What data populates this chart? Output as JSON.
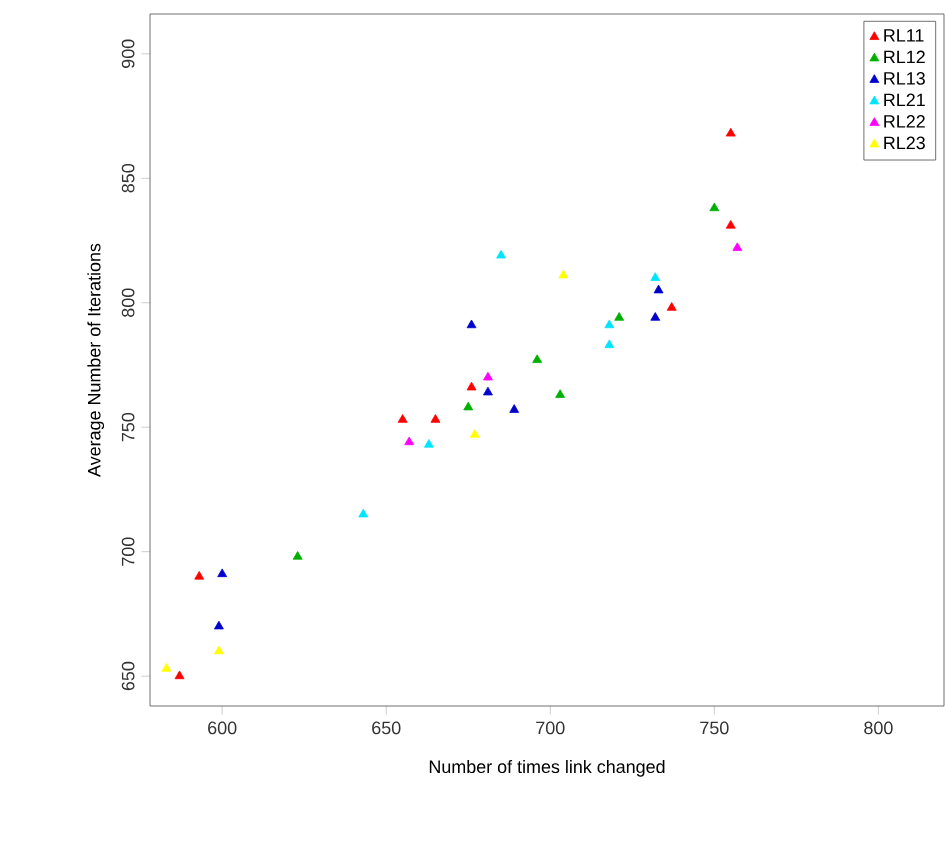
{
  "chart_data": {
    "type": "scatter",
    "xlabel": "Number of times link changed",
    "ylabel": "Average Number of Iterations",
    "xlim": [
      578,
      820
    ],
    "ylim": [
      638,
      916
    ],
    "xticks": [
      600,
      650,
      700,
      750,
      800
    ],
    "yticks": [
      650,
      700,
      750,
      800,
      850,
      900
    ],
    "marker": "triangle",
    "legend": "top right",
    "grid": false,
    "series": [
      {
        "name": "RL11",
        "color": "#ff0000",
        "x": [
          593,
          587,
          655,
          665,
          676,
          755,
          755,
          737
        ],
        "values": [
          690,
          650,
          753,
          753,
          766,
          868,
          831,
          798
        ]
      },
      {
        "name": "RL12",
        "color": "#00b000",
        "x": [
          696,
          675,
          703,
          721,
          750,
          623
        ],
        "values": [
          777,
          758,
          763,
          794,
          838,
          698
        ]
      },
      {
        "name": "RL13",
        "color": "#0000cd",
        "x": [
          676,
          681,
          689,
          733,
          732,
          600,
          599
        ],
        "values": [
          791,
          764,
          757,
          805,
          794,
          691,
          670
        ]
      },
      {
        "name": "RL21",
        "color": "#00e5ff",
        "x": [
          685,
          732,
          718,
          718,
          643,
          663
        ],
        "values": [
          819,
          810,
          791,
          783,
          715,
          743
        ]
      },
      {
        "name": "RL22",
        "color": "#ff00ff",
        "x": [
          681,
          657,
          757
        ],
        "values": [
          770,
          744,
          822
        ]
      },
      {
        "name": "RL23",
        "color": "#ffff00",
        "x": [
          704,
          677,
          599,
          583
        ],
        "values": [
          811,
          747,
          660,
          653
        ]
      }
    ]
  }
}
